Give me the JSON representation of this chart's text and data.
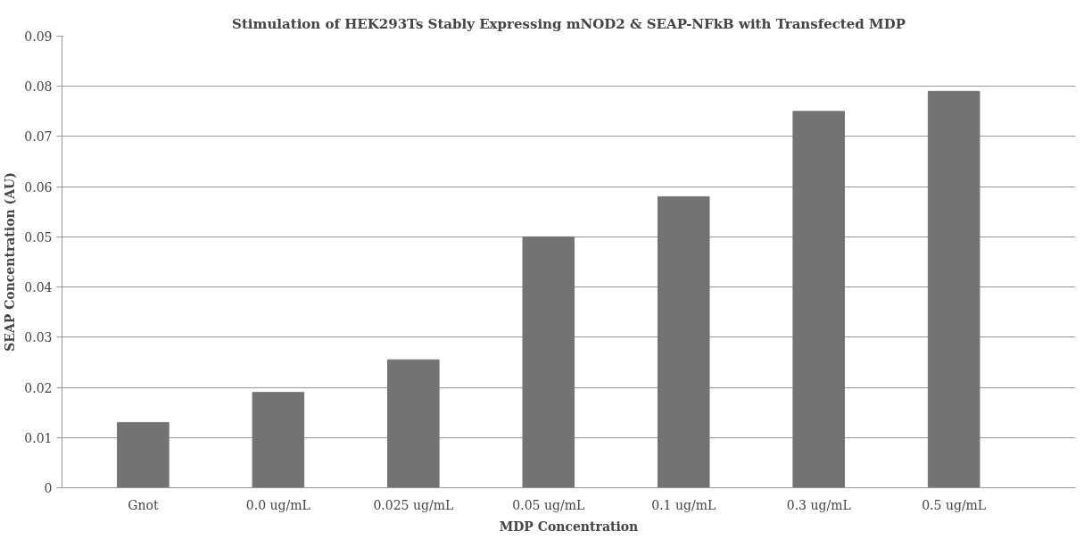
{
  "chart_data": {
    "type": "bar",
    "title": "Stimulation of HEK293Ts Stably Expressing mNOD2 & SEAP-NFkB with Transfected MDP",
    "xlabel": "MDP Concentration",
    "ylabel": "SEAP Concentration (AU)",
    "categories": [
      "Gnot",
      "0.0 ug/mL",
      "0.025 ug/mL",
      "0.05 ug/mL",
      "0.1 ug/mL",
      "0.3 ug/mL",
      "0.5 ug/mL"
    ],
    "values": [
      0.013,
      0.019,
      0.0255,
      0.05,
      0.058,
      0.075,
      0.079
    ],
    "color": "#737373",
    "ylim": [
      0,
      0.09
    ],
    "yticks": [
      0,
      0.01,
      0.02,
      0.03,
      0.04,
      0.05,
      0.06,
      0.07,
      0.08,
      0.09
    ],
    "grid": "y"
  }
}
